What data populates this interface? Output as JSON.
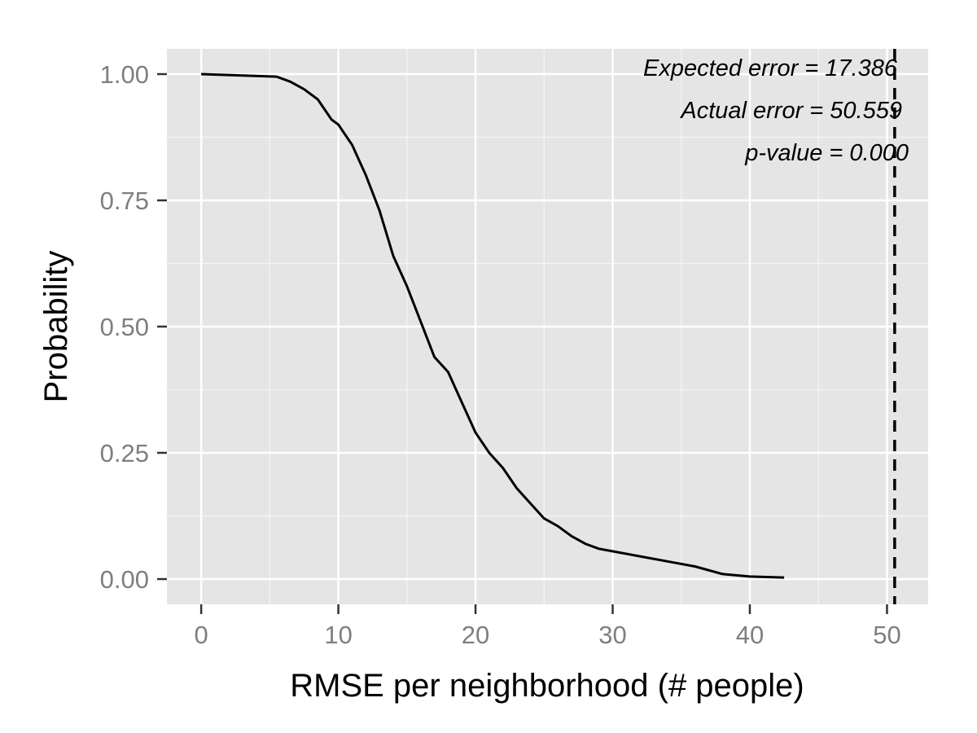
{
  "chart_data": {
    "type": "line",
    "xlabel": "RMSE per neighborhood (# people)",
    "ylabel": "Probability",
    "xlim": [
      -2.5,
      53
    ],
    "ylim": [
      -0.05,
      1.05
    ],
    "x_ticks": [
      0,
      10,
      20,
      30,
      40,
      50
    ],
    "x_tick_labels": [
      "0",
      "10",
      "20",
      "30",
      "40",
      "50"
    ],
    "y_ticks": [
      0,
      0.25,
      0.5,
      0.75,
      1
    ],
    "y_tick_labels": [
      "0.00",
      "0.25",
      "0.50",
      "0.75",
      "1.00"
    ],
    "grid": true,
    "background_color": "#e5e5e5",
    "grid_color": "#ffffff",
    "line_color": "#000000",
    "series": [
      {
        "x": [
          0,
          5.5,
          6.5,
          7.5,
          8.5,
          9.5,
          10,
          11,
          12,
          13,
          14,
          15,
          16,
          17,
          18,
          19,
          20,
          21,
          22,
          23,
          24,
          25,
          26,
          27,
          28,
          29,
          30,
          32,
          34,
          36,
          38,
          40,
          42.5
        ],
        "y": [
          1.0,
          0.995,
          0.985,
          0.97,
          0.95,
          0.91,
          0.9,
          0.86,
          0.8,
          0.73,
          0.64,
          0.58,
          0.51,
          0.44,
          0.41,
          0.35,
          0.29,
          0.25,
          0.22,
          0.18,
          0.15,
          0.12,
          0.105,
          0.085,
          0.07,
          0.06,
          0.055,
          0.045,
          0.035,
          0.025,
          0.01,
          0.005,
          0.003
        ]
      }
    ],
    "reference_line": {
      "x": 50.559,
      "style": "dashed"
    },
    "annotations": [
      "Expected error = 17.386",
      "Actual error = 50.559",
      "p-value = 0.000"
    ]
  }
}
